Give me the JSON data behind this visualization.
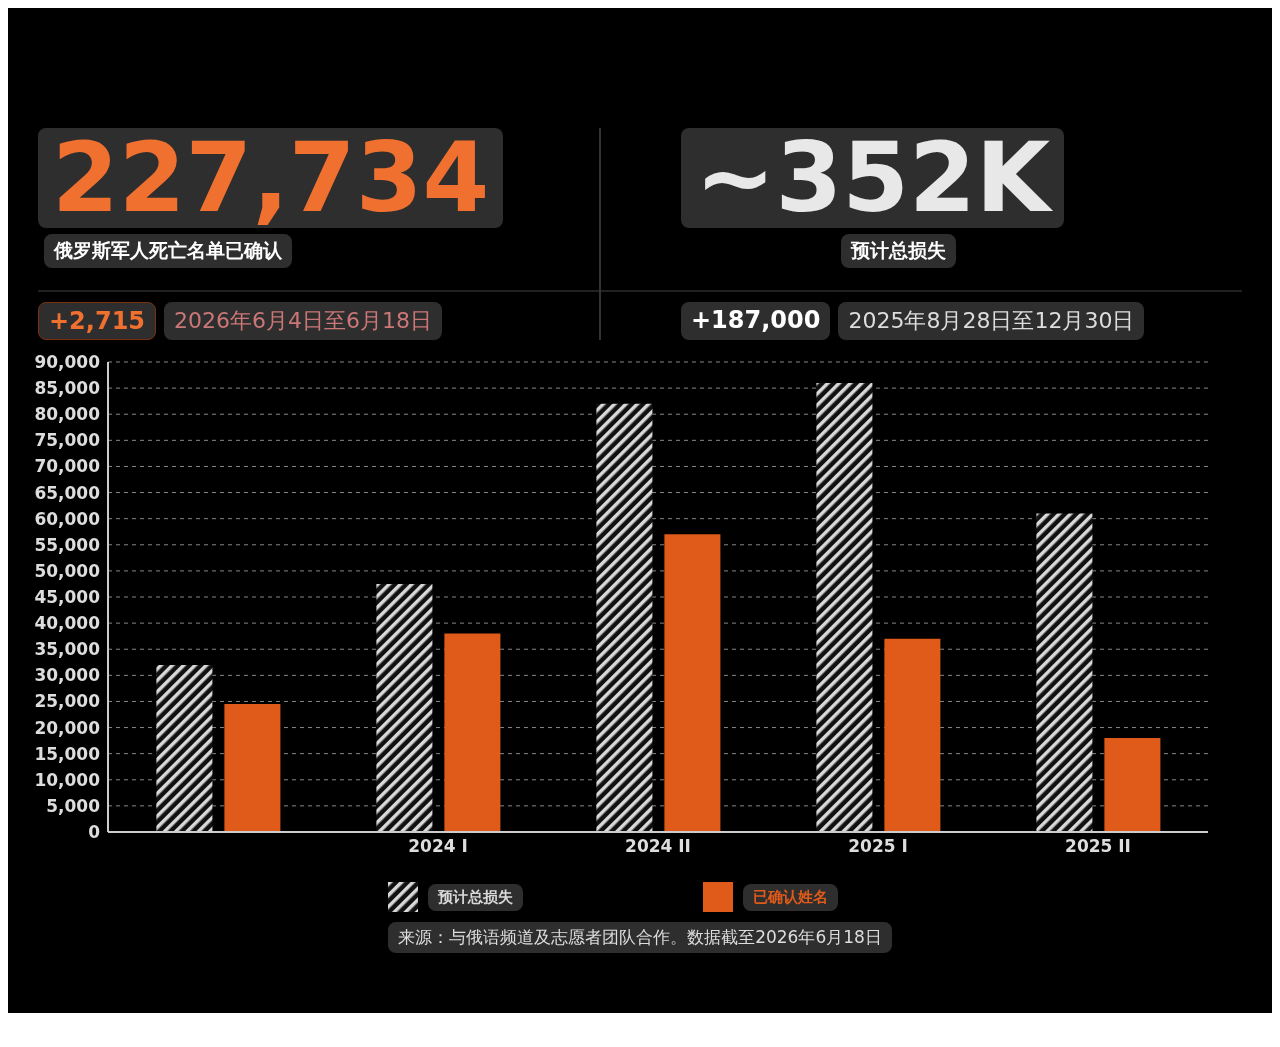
{
  "chart_data": {
    "type": "bar",
    "categories": [
      null,
      "2024 I",
      "2024 II",
      "2025 I",
      "2025 II"
    ],
    "series": [
      {
        "name": "预计总损失",
        "color": "#d9d9d9",
        "values": [
          32000,
          47500,
          82000,
          86000,
          61000
        ]
      },
      {
        "name": "已确认姓名",
        "color": "#e05a1a",
        "values": [
          24500,
          38000,
          57000,
          37000,
          18000
        ]
      }
    ],
    "ylim": [
      0,
      90000
    ],
    "yticks": [
      {
        "value": 0,
        "label": "0"
      },
      {
        "value": 5000,
        "label": "5,000"
      },
      {
        "value": 10000,
        "label": "10,000"
      },
      {
        "value": 15000,
        "label": "15,000"
      },
      {
        "value": 20000,
        "label": "20,000"
      },
      {
        "value": 25000,
        "label": "25,000"
      },
      {
        "value": 30000,
        "label": "30,000"
      },
      {
        "value": 35000,
        "label": "35,000"
      },
      {
        "value": 40000,
        "label": "40,000"
      },
      {
        "value": 45000,
        "label": "45,000"
      },
      {
        "value": 50000,
        "label": "50,000"
      },
      {
        "value": 55000,
        "label": "55,000"
      },
      {
        "value": 60000,
        "label": "60,000"
      },
      {
        "value": 65000,
        "label": "65,000"
      },
      {
        "value": 70000,
        "label": "70,000"
      },
      {
        "value": 75000,
        "label": "75,000"
      },
      {
        "value": 80000,
        "label": "80,000"
      },
      {
        "value": 85000,
        "label": "85,000"
      },
      {
        "value": 90000,
        "label": "90,000"
      }
    ],
    "grid": "y",
    "legend": "bottom",
    "annotations": [
      "227,734",
      "俄罗斯军人死亡名单已确认",
      "+2,715",
      "2026年6月4日至6月18日",
      "~352K",
      "预计总损失",
      "+187,000",
      "2025年8月28日至12月30日",
      "来源：与俄语频道及志愿者团队合作。数据截至2026年6月18日"
    ]
  }
}
